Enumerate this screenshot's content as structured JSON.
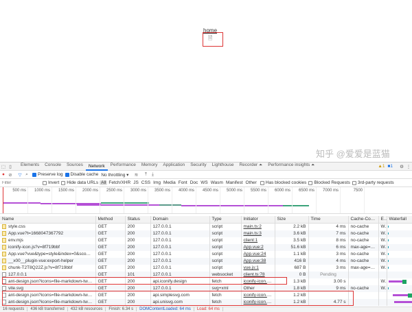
{
  "page": {
    "link": "home",
    "icon": "broken-image-icon"
  },
  "tabs": [
    "Elements",
    "Console",
    "Sources",
    "Network",
    "Performance",
    "Memory",
    "Application",
    "Security",
    "Lighthouse",
    "Recorder ⏶",
    "Performance insights ⏶"
  ],
  "active_tab": "Network",
  "badges": {
    "warnings": "1",
    "messages": "1"
  },
  "toolbar": {
    "preserve_log": "Preserve log",
    "disable_cache": "Disable cache",
    "throttling": "No throttling"
  },
  "filter": {
    "placeholder": "Filter",
    "invert": "Invert",
    "hide_data_urls": "Hide data URLs",
    "types": [
      "All",
      "Fetch/XHR",
      "JS",
      "CSS",
      "Img",
      "Media",
      "Font",
      "Doc",
      "WS",
      "Wasm",
      "Manifest",
      "Other"
    ],
    "has_blocked_cookies": "Has blocked cookies",
    "blocked_requests": "Blocked Requests",
    "third_party": "3rd-party requests"
  },
  "timeline": {
    "ticks": [
      "500 ms",
      "1000 ms",
      "1500 ms",
      "2000 ms",
      "2500 ms",
      "3000 ms",
      "3500 ms",
      "4000 ms",
      "4500 ms",
      "5000 ms",
      "5500 ms",
      "6000 ms",
      "6500 ms",
      "7000 ms",
      "7500"
    ]
  },
  "columns": [
    "Name",
    "Method",
    "Status",
    "Domain",
    "Type",
    "Initiator",
    "Size",
    "Time",
    "Cache-Contro",
    "E.",
    "Waterfall"
  ],
  "rows": [
    {
      "name": "style.css",
      "method": "GET",
      "status": "200",
      "domain": "127.0.0.1",
      "type": "script",
      "initiator": "main.ts:2",
      "size": "2.2 kB",
      "time": "4 ms",
      "cache": "no-cache",
      "e": "W...",
      "icon": "script"
    },
    {
      "name": "App.vue?t=1668047367792",
      "method": "GET",
      "status": "200",
      "domain": "127.0.0.1",
      "type": "script",
      "initiator": "main.ts:3",
      "size": "3.6 kB",
      "time": "7 ms",
      "cache": "no-cache",
      "e": "W...",
      "icon": "script"
    },
    {
      "name": "env.mjs",
      "method": "GET",
      "status": "200",
      "domain": "127.0.0.1",
      "type": "script",
      "initiator": "client:1",
      "size": "3.5 kB",
      "time": "8 ms",
      "cache": "no-cache",
      "e": "W...",
      "icon": "script"
    },
    {
      "name": "iconify-icon.js?v=8f719bbf",
      "method": "GET",
      "status": "200",
      "domain": "127.0.0.1",
      "type": "script",
      "initiator": "App.vue:2",
      "size": "51.6 kB",
      "time": "6 ms",
      "cache": "max-age=31...",
      "e": "W...",
      "icon": "script"
    },
    {
      "name": "App.vue?vue&type=style&index=0&scoped=7...",
      "method": "GET",
      "status": "200",
      "domain": "127.0.0.1",
      "type": "script",
      "initiator": "App.vue:24",
      "size": "1.1 kB",
      "time": "3 ms",
      "cache": "no-cache",
      "e": "W...",
      "icon": "script"
    },
    {
      "name": "__x00__plugin-vue:export-helper",
      "method": "GET",
      "status": "200",
      "domain": "127.0.0.1",
      "type": "script",
      "initiator": "App.vue:38",
      "size": "416 B",
      "time": "4 ms",
      "cache": "no-cache",
      "e": "W...",
      "icon": "script"
    },
    {
      "name": "chunk-T2T8Q22Z.js?v=8f719bbf",
      "method": "GET",
      "status": "200",
      "domain": "127.0.0.1",
      "type": "script",
      "initiator": "vue.js:1",
      "size": "687 B",
      "time": "3 ms",
      "cache": "max-age=31...",
      "e": "W...",
      "icon": "script"
    },
    {
      "name": "127.0.0.1",
      "method": "GET",
      "status": "101",
      "domain": "127.0.0.1",
      "type": "websocket",
      "initiator": "client.ts:78",
      "size": "0 B",
      "time": "Pending",
      "cache": "",
      "e": "",
      "icon": "doc"
    },
    {
      "name": "ant-design.json?icons=file-markdown-twotone",
      "method": "GET",
      "status": "200",
      "domain": "api.iconify.design",
      "type": "fetch",
      "initiator": "iconify-icon.mi...",
      "size": "1.3 kB",
      "time": "3.00 s",
      "cache": "",
      "e": "W...",
      "icon": "doc"
    },
    {
      "name": "vite.svg",
      "method": "GET",
      "status": "200",
      "domain": "127.0.0.1",
      "type": "svg+xml",
      "initiator": "Other",
      "size": "1.8 kB",
      "time": "9 ms",
      "cache": "no-cache",
      "e": "W...",
      "icon": "doc"
    },
    {
      "name": "ant-design.json?icons=file-markdown-twotone",
      "method": "GET",
      "status": "200",
      "domain": "api.simplesvg.com",
      "type": "fetch",
      "initiator": "iconify-icon.mi...",
      "size": "1.2 kB",
      "time": "",
      "cache": "",
      "e": "",
      "icon": "doc"
    },
    {
      "name": "ant-design.json?icons=file-markdown-twotone",
      "method": "GET",
      "status": "200",
      "domain": "api.unisvg.com",
      "type": "fetch",
      "initiator": "iconify-icon.mi...",
      "size": "1.2 kB",
      "time": "4.77 s",
      "cache": "",
      "e": "",
      "icon": "doc"
    }
  ],
  "status": {
    "requests": "16 requests",
    "transferred": "436 kB transferred",
    "resources": "432 kB resources",
    "finish": "Finish: 6.34 s",
    "dcl": "DOMContentLoaded: 64 ms",
    "load": "Load: 64 ms"
  },
  "watermark": "知乎 @爱爱是蓝猫",
  "colors": {
    "accent": "#1a73e8",
    "highlight": "#d33",
    "purple": "#b44fd6",
    "green": "#1da462"
  }
}
